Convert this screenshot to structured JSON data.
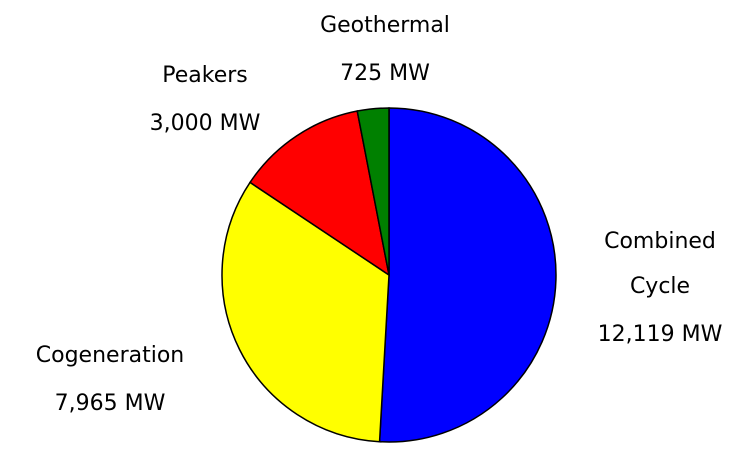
{
  "chart_data": {
    "type": "pie",
    "categories": [
      "Combined Cycle",
      "Cogeneration",
      "Peakers",
      "Geothermal"
    ],
    "values": [
      12119,
      7965,
      3000,
      725
    ],
    "value_labels": [
      "12,119 MW",
      "7,965 MW",
      "3,000 MW",
      "725 MW"
    ],
    "colors": [
      "#0000ff",
      "#ffff00",
      "#ff0000",
      "#008000"
    ]
  }
}
